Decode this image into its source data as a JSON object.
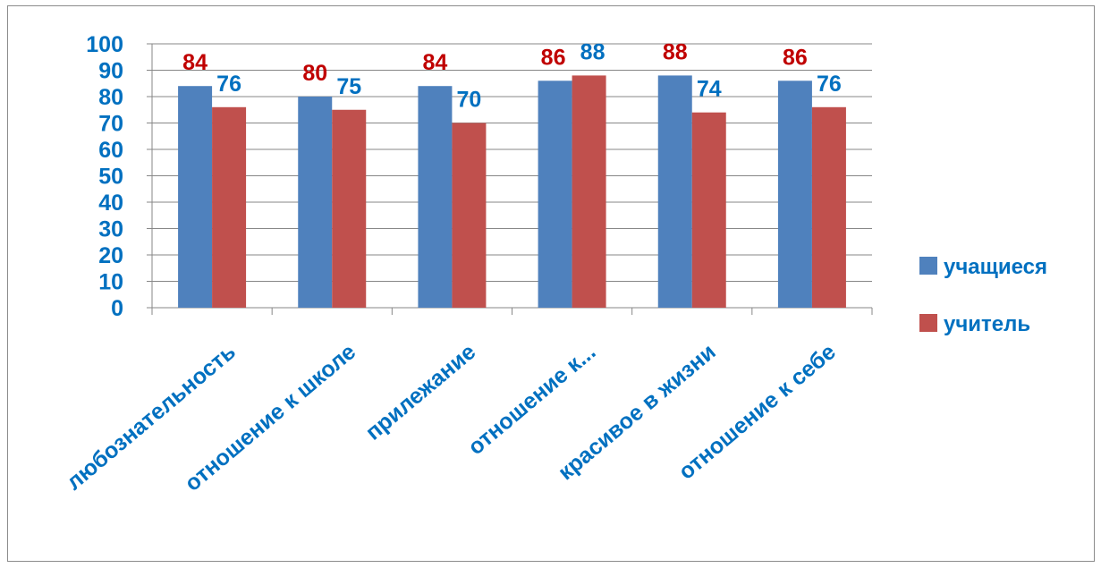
{
  "chart_data": {
    "type": "bar",
    "categories": [
      "любознательность",
      "отношение к школе",
      "прилежание",
      "отношение к...",
      "красивое в жизни",
      "отношение к себе"
    ],
    "series": [
      {
        "name": "учащиеся",
        "values": [
          84,
          80,
          84,
          86,
          88,
          86
        ],
        "color": "#4f81bd",
        "label_color": "#c00000"
      },
      {
        "name": "учитель",
        "values": [
          76,
          75,
          70,
          88,
          74,
          76
        ],
        "color": "#c0504d",
        "label_color": "#0070c0"
      }
    ],
    "ylim": [
      0,
      100
    ],
    "yticks": [
      0,
      10,
      20,
      30,
      40,
      50,
      60,
      70,
      80,
      90,
      100
    ],
    "grid": true,
    "legend_position": "right",
    "axis_text_color": "#0070c0"
  }
}
